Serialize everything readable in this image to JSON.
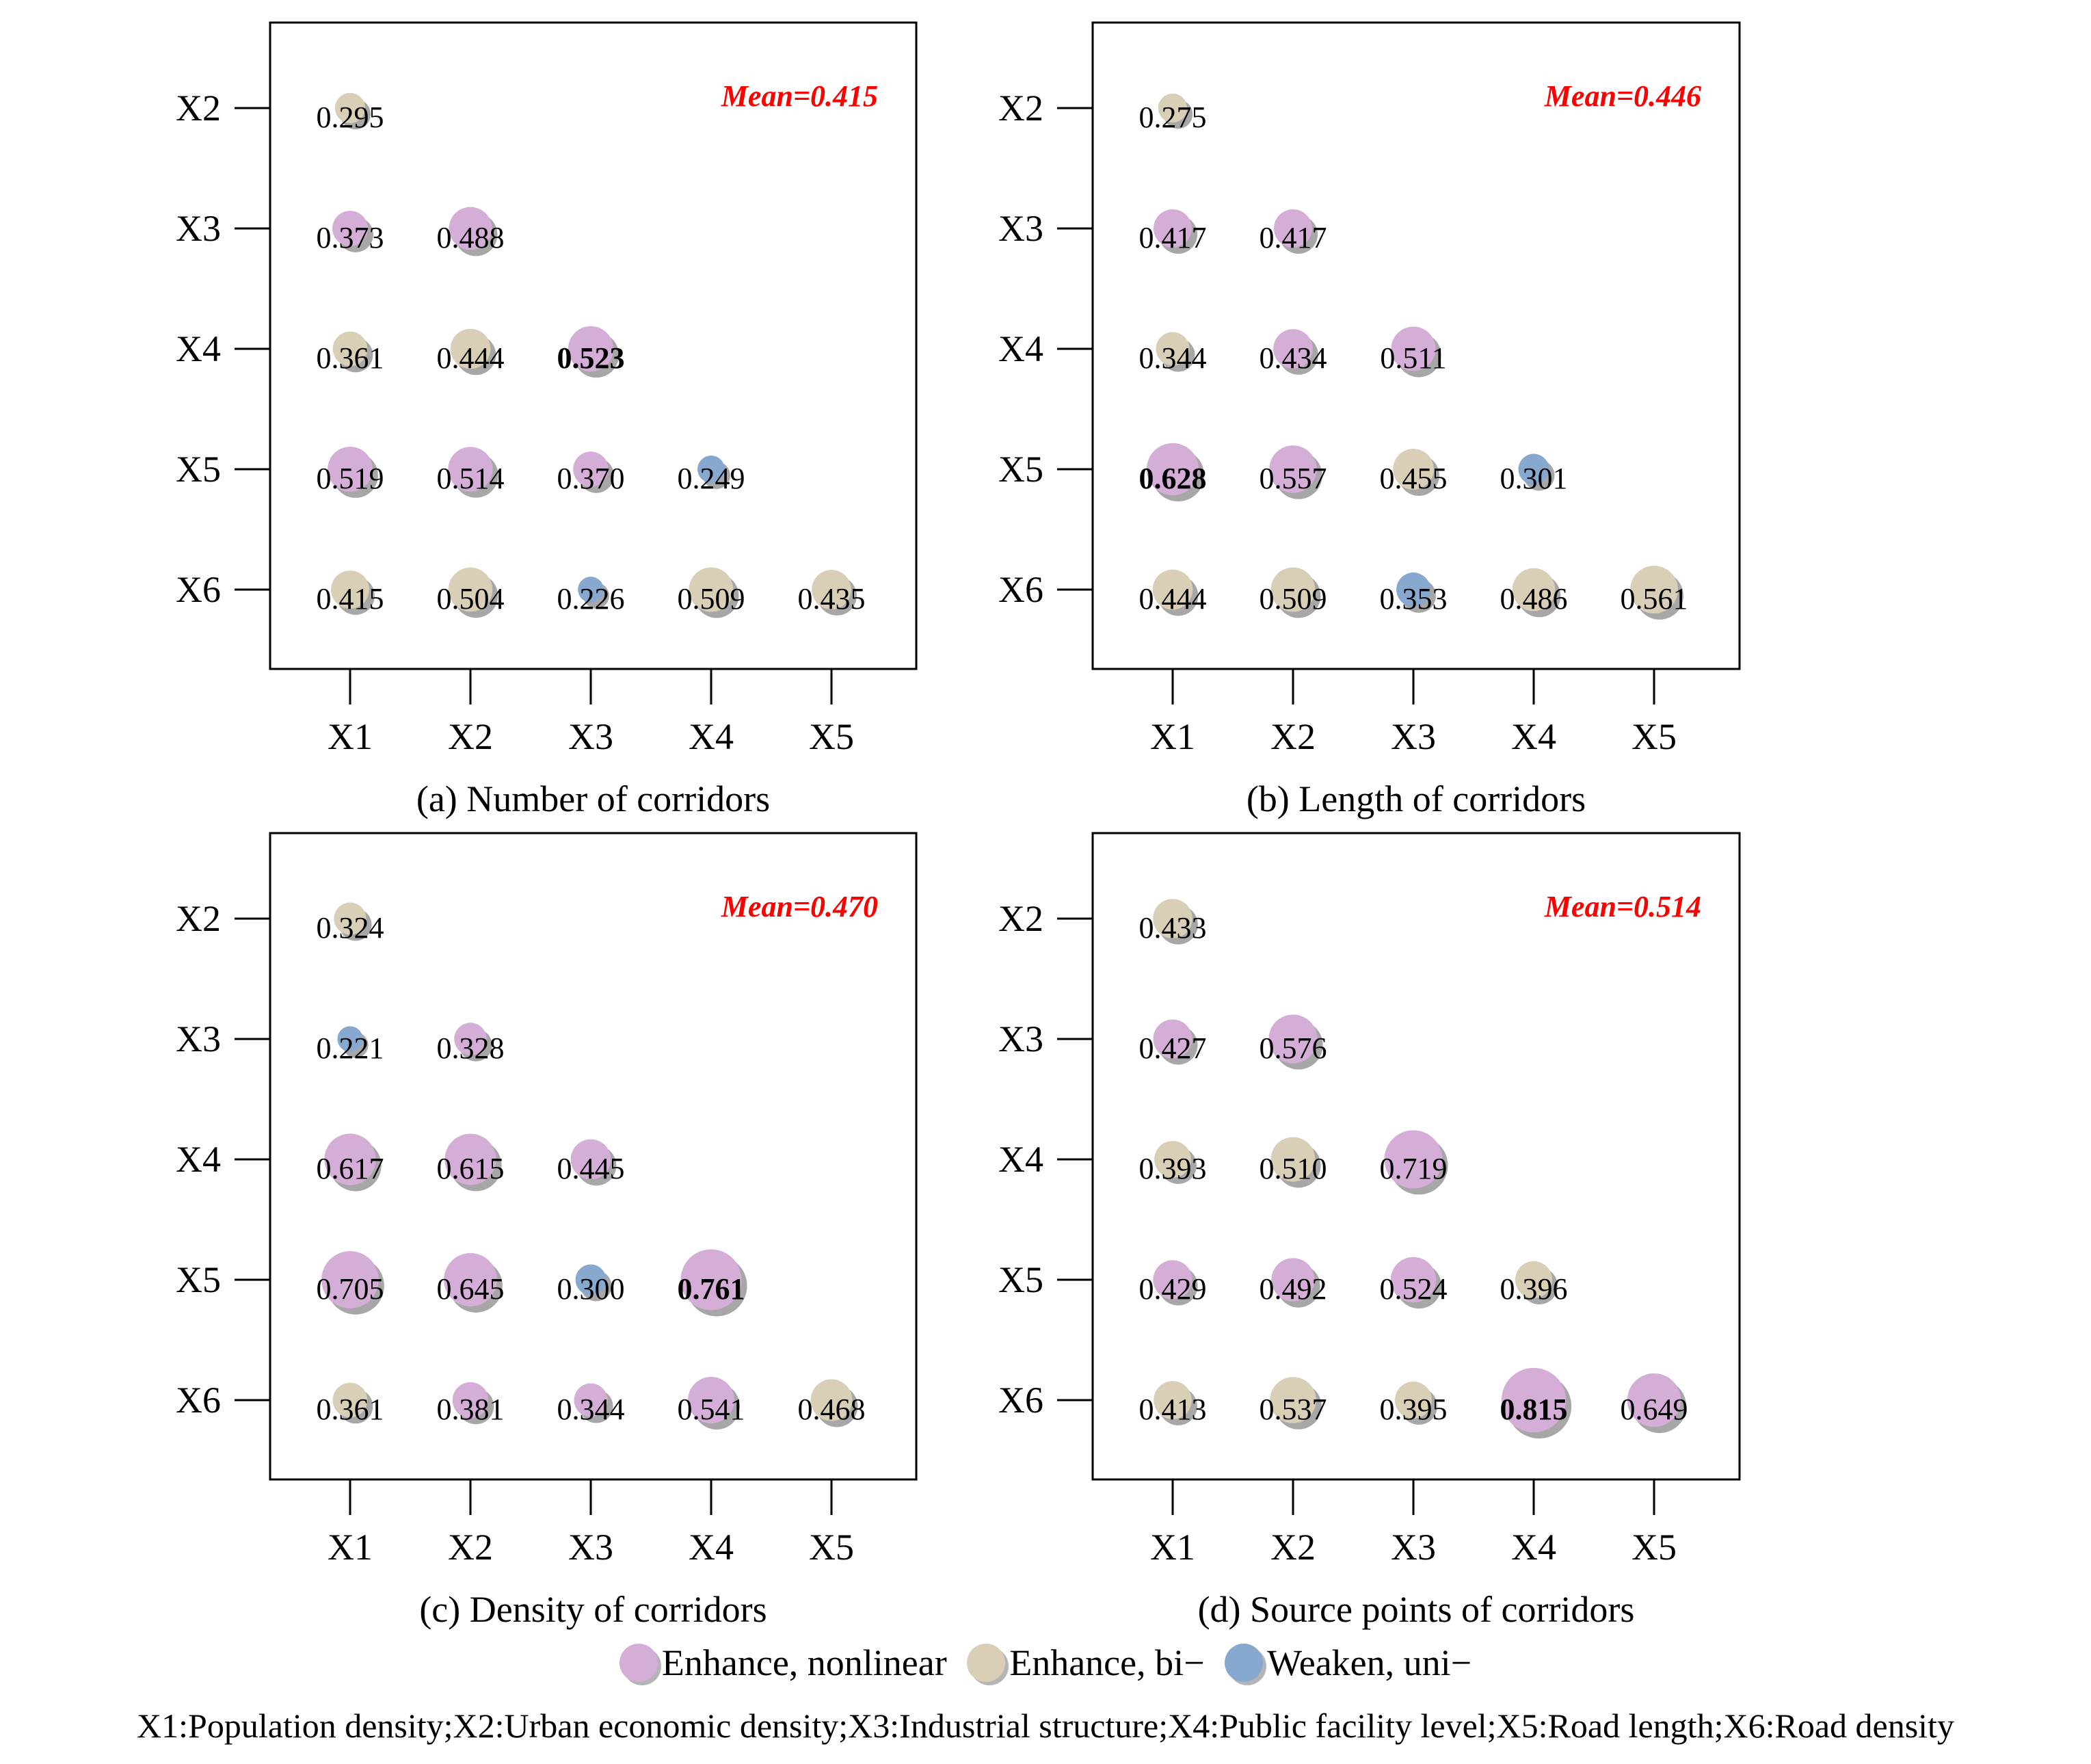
{
  "chart_data": [
    {
      "type": "scatter",
      "caption": "(a)  Number of corridors",
      "mean_label": "Mean=0.415",
      "x_categories": [
        "X1",
        "X2",
        "X3",
        "X4",
        "X5"
      ],
      "y_categories": [
        "X2",
        "X3",
        "X4",
        "X5",
        "X6"
      ],
      "points": [
        {
          "x": "X1",
          "y": "X2",
          "value": 0.295,
          "label": "0.295",
          "class": "bi"
        },
        {
          "x": "X1",
          "y": "X3",
          "value": 0.373,
          "label": "0.373",
          "class": "nonlinear"
        },
        {
          "x": "X2",
          "y": "X3",
          "value": 0.488,
          "label": "0.488",
          "class": "nonlinear"
        },
        {
          "x": "X1",
          "y": "X4",
          "value": 0.361,
          "label": "0.361",
          "class": "bi"
        },
        {
          "x": "X2",
          "y": "X4",
          "value": 0.444,
          "label": "0.444",
          "class": "bi"
        },
        {
          "x": "X3",
          "y": "X4",
          "value": 0.523,
          "label": "0.523",
          "class": "nonlinear",
          "bold": true
        },
        {
          "x": "X1",
          "y": "X5",
          "value": 0.519,
          "label": "0.519",
          "class": "nonlinear"
        },
        {
          "x": "X2",
          "y": "X5",
          "value": 0.514,
          "label": "0.514",
          "class": "nonlinear"
        },
        {
          "x": "X3",
          "y": "X5",
          "value": 0.37,
          "label": "0.370",
          "class": "nonlinear"
        },
        {
          "x": "X4",
          "y": "X5",
          "value": 0.249,
          "label": "0.249",
          "class": "weaken"
        },
        {
          "x": "X1",
          "y": "X6",
          "value": 0.415,
          "label": "0.415",
          "class": "bi"
        },
        {
          "x": "X2",
          "y": "X6",
          "value": 0.504,
          "label": "0.504",
          "class": "bi"
        },
        {
          "x": "X3",
          "y": "X6",
          "value": 0.226,
          "label": "0.226",
          "class": "weaken"
        },
        {
          "x": "X4",
          "y": "X6",
          "value": 0.509,
          "label": "0.509",
          "class": "bi"
        },
        {
          "x": "X5",
          "y": "X6",
          "value": 0.435,
          "label": "0.435",
          "class": "bi"
        }
      ]
    },
    {
      "type": "scatter",
      "caption": "(b)  Length of corridors",
      "mean_label": "Mean=0.446",
      "x_categories": [
        "X1",
        "X2",
        "X3",
        "X4",
        "X5"
      ],
      "y_categories": [
        "X2",
        "X3",
        "X4",
        "X5",
        "X6"
      ],
      "points": [
        {
          "x": "X1",
          "y": "X2",
          "value": 0.275,
          "label": "0.275",
          "class": "bi"
        },
        {
          "x": "X1",
          "y": "X3",
          "value": 0.417,
          "label": "0.417",
          "class": "nonlinear"
        },
        {
          "x": "X2",
          "y": "X3",
          "value": 0.417,
          "label": "0.417",
          "class": "nonlinear"
        },
        {
          "x": "X1",
          "y": "X4",
          "value": 0.344,
          "label": "0.344",
          "class": "bi"
        },
        {
          "x": "X2",
          "y": "X4",
          "value": 0.434,
          "label": "0.434",
          "class": "nonlinear"
        },
        {
          "x": "X3",
          "y": "X4",
          "value": 0.511,
          "label": "0.511",
          "class": "nonlinear"
        },
        {
          "x": "X1",
          "y": "X5",
          "value": 0.628,
          "label": "0.628",
          "class": "nonlinear",
          "bold": true
        },
        {
          "x": "X2",
          "y": "X5",
          "value": 0.557,
          "label": "0.557",
          "class": "nonlinear"
        },
        {
          "x": "X3",
          "y": "X5",
          "value": 0.455,
          "label": "0.455",
          "class": "bi"
        },
        {
          "x": "X4",
          "y": "X5",
          "value": 0.301,
          "label": "0.301",
          "class": "weaken"
        },
        {
          "x": "X1",
          "y": "X6",
          "value": 0.444,
          "label": "0.444",
          "class": "bi"
        },
        {
          "x": "X2",
          "y": "X6",
          "value": 0.509,
          "label": "0.509",
          "class": "bi"
        },
        {
          "x": "X3",
          "y": "X6",
          "value": 0.353,
          "label": "0.353",
          "class": "weaken"
        },
        {
          "x": "X4",
          "y": "X6",
          "value": 0.486,
          "label": "0.486",
          "class": "bi"
        },
        {
          "x": "X5",
          "y": "X6",
          "value": 0.561,
          "label": "0.561",
          "class": "bi"
        }
      ]
    },
    {
      "type": "scatter",
      "caption": "(c)  Density of corridors",
      "mean_label": "Mean=0.470",
      "x_categories": [
        "X1",
        "X2",
        "X3",
        "X4",
        "X5"
      ],
      "y_categories": [
        "X2",
        "X3",
        "X4",
        "X5",
        "X6"
      ],
      "points": [
        {
          "x": "X1",
          "y": "X2",
          "value": 0.324,
          "label": "0.324",
          "class": "bi"
        },
        {
          "x": "X1",
          "y": "X3",
          "value": 0.221,
          "label": "0.221",
          "class": "weaken"
        },
        {
          "x": "X2",
          "y": "X3",
          "value": 0.328,
          "label": "0.328",
          "class": "nonlinear"
        },
        {
          "x": "X1",
          "y": "X4",
          "value": 0.617,
          "label": "0.617",
          "class": "nonlinear"
        },
        {
          "x": "X2",
          "y": "X4",
          "value": 0.615,
          "label": "0.615",
          "class": "nonlinear"
        },
        {
          "x": "X3",
          "y": "X4",
          "value": 0.445,
          "label": "0.445",
          "class": "nonlinear"
        },
        {
          "x": "X1",
          "y": "X5",
          "value": 0.705,
          "label": "0.705",
          "class": "nonlinear"
        },
        {
          "x": "X2",
          "y": "X5",
          "value": 0.645,
          "label": "0.645",
          "class": "nonlinear"
        },
        {
          "x": "X3",
          "y": "X5",
          "value": 0.3,
          "label": "0.300",
          "class": "weaken"
        },
        {
          "x": "X4",
          "y": "X5",
          "value": 0.761,
          "label": "0.761",
          "class": "nonlinear",
          "bold": true
        },
        {
          "x": "X1",
          "y": "X6",
          "value": 0.361,
          "label": "0.361",
          "class": "bi"
        },
        {
          "x": "X2",
          "y": "X6",
          "value": 0.381,
          "label": "0.381",
          "class": "nonlinear"
        },
        {
          "x": "X3",
          "y": "X6",
          "value": 0.344,
          "label": "0.344",
          "class": "nonlinear"
        },
        {
          "x": "X4",
          "y": "X6",
          "value": 0.541,
          "label": "0.541",
          "class": "nonlinear"
        },
        {
          "x": "X5",
          "y": "X6",
          "value": 0.468,
          "label": "0.468",
          "class": "bi"
        }
      ]
    },
    {
      "type": "scatter",
      "caption": "(d)  Source points of corridors",
      "mean_label": "Mean=0.514",
      "x_categories": [
        "X1",
        "X2",
        "X3",
        "X4",
        "X5"
      ],
      "y_categories": [
        "X2",
        "X3",
        "X4",
        "X5",
        "X6"
      ],
      "points": [
        {
          "x": "X1",
          "y": "X2",
          "value": 0.433,
          "label": "0.433",
          "class": "bi"
        },
        {
          "x": "X1",
          "y": "X3",
          "value": 0.427,
          "label": "0.427",
          "class": "nonlinear"
        },
        {
          "x": "X2",
          "y": "X3",
          "value": 0.576,
          "label": "0.576",
          "class": "nonlinear"
        },
        {
          "x": "X1",
          "y": "X4",
          "value": 0.393,
          "label": "0.393",
          "class": "bi"
        },
        {
          "x": "X2",
          "y": "X4",
          "value": 0.51,
          "label": "0.510",
          "class": "bi"
        },
        {
          "x": "X3",
          "y": "X4",
          "value": 0.719,
          "label": "0.719",
          "class": "nonlinear"
        },
        {
          "x": "X1",
          "y": "X5",
          "value": 0.429,
          "label": "0.429",
          "class": "nonlinear"
        },
        {
          "x": "X2",
          "y": "X5",
          "value": 0.492,
          "label": "0.492",
          "class": "nonlinear"
        },
        {
          "x": "X3",
          "y": "X5",
          "value": 0.524,
          "label": "0.524",
          "class": "nonlinear"
        },
        {
          "x": "X4",
          "y": "X5",
          "value": 0.396,
          "label": "0.396",
          "class": "bi"
        },
        {
          "x": "X1",
          "y": "X6",
          "value": 0.413,
          "label": "0.413",
          "class": "bi"
        },
        {
          "x": "X2",
          "y": "X6",
          "value": 0.537,
          "label": "0.537",
          "class": "bi"
        },
        {
          "x": "X3",
          "y": "X6",
          "value": 0.395,
          "label": "0.395",
          "class": "bi"
        },
        {
          "x": "X4",
          "y": "X6",
          "value": 0.815,
          "label": "0.815",
          "class": "nonlinear",
          "bold": true
        },
        {
          "x": "X5",
          "y": "X6",
          "value": 0.649,
          "label": "0.649",
          "class": "nonlinear"
        }
      ]
    }
  ],
  "colors": {
    "nonlinear": "#d5aed8",
    "bi": "#d9cfb6",
    "weaken": "#87a9d0",
    "mean": "#ff0000"
  },
  "legend": {
    "nonlinear": "Enhance, nonlinear",
    "bi": "Enhance, bi−",
    "weaken": "Weaken, uni−"
  },
  "footnote": "X1:Population density;X2:Urban economic density;X3:Industrial structure;X4:Public facility level;X5:Road length;X6:Road density"
}
